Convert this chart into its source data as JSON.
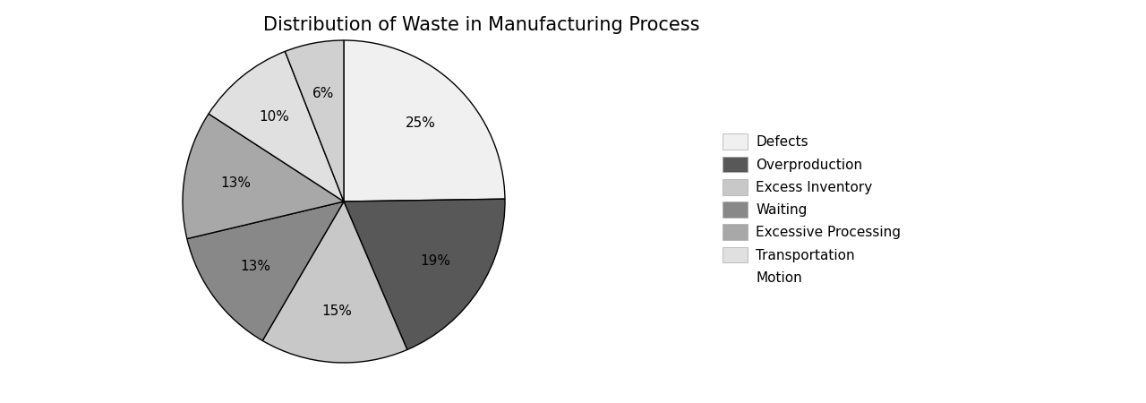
{
  "title": "Distribution of Waste in Manufacturing Process",
  "labels": [
    "Defects",
    "Overproduction",
    "Excess Inventory",
    "Waiting",
    "Excessive Processing",
    "Transportation",
    "Motion"
  ],
  "values": [
    25,
    19,
    15,
    13,
    13,
    10,
    6
  ],
  "colors": [
    "#f0f0f0",
    "#585858",
    "#c8c8c8",
    "#888888",
    "#a8a8a8",
    "#e0e0e0",
    "#d0d0d0"
  ],
  "motion_color": "none",
  "startangle": 90,
  "title_fontsize": 15,
  "pct_fontsize": 11,
  "legend_fontsize": 11,
  "background_color": "#ffffff"
}
